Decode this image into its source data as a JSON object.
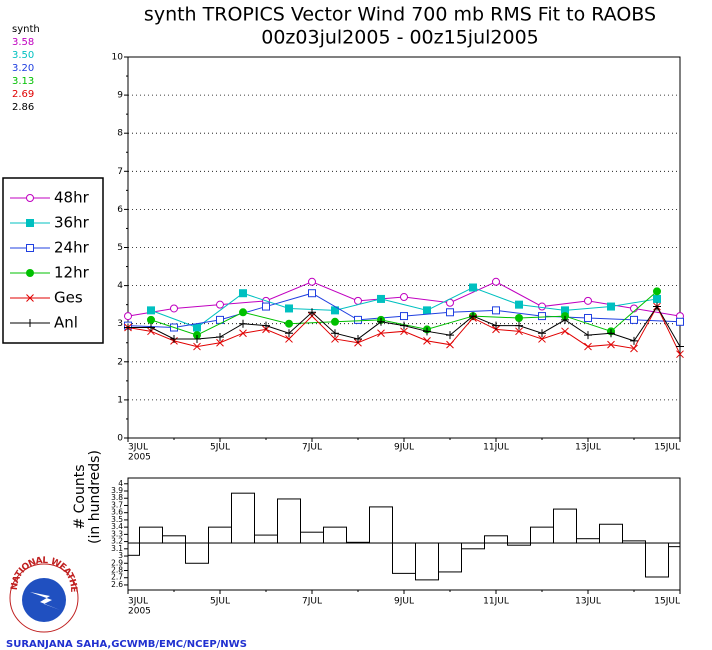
{
  "chart_data": [
    {
      "type": "line",
      "title": "synth TROPICS Vector Wind 700 mb RMS Fit to RAOBS",
      "subtitle": "00z03jul2005 - 00z15jul2005",
      "summary_title": "synth",
      "summary_labels": [
        "3.58",
        "3.50",
        "3.20",
        "3.13",
        "2.69",
        "2.86"
      ],
      "xlim": [
        0,
        12
      ],
      "xticks": [
        {
          "value": 0,
          "label": "3JUL"
        },
        {
          "value": 2,
          "label": "5JUL"
        },
        {
          "value": 4,
          "label": "7JUL"
        },
        {
          "value": 6,
          "label": "9JUL"
        },
        {
          "value": 8,
          "label": "11JUL"
        },
        {
          "value": 10,
          "label": "13JUL"
        },
        {
          "value": 12,
          "label": "15JUL"
        }
      ],
      "x_year_label": "2005",
      "ylim": [
        0,
        10
      ],
      "yticks": [
        0,
        1,
        2,
        3,
        4,
        5,
        6,
        7,
        8,
        9,
        10
      ],
      "grid": true,
      "series": [
        {
          "name": "48hr",
          "color": "#c000c0",
          "marker": "open-circle",
          "x": [
            0,
            1,
            2,
            3,
            4,
            5,
            6,
            7,
            8,
            9,
            10,
            11,
            12
          ],
          "values": [
            3.2,
            3.4,
            3.5,
            3.6,
            4.1,
            3.6,
            3.7,
            3.55,
            4.1,
            3.45,
            3.6,
            3.4,
            3.2
          ]
        },
        {
          "name": "36hr",
          "color": "#00c0c0",
          "marker": "filled-square",
          "x": [
            0.5,
            1.5,
            2.5,
            3.5,
            4.5,
            5.5,
            6.5,
            7.5,
            8.5,
            9.5,
            10.5,
            11.5
          ],
          "values": [
            3.35,
            2.9,
            3.8,
            3.4,
            3.35,
            3.65,
            3.35,
            3.95,
            3.5,
            3.35,
            3.45,
            3.65
          ]
        },
        {
          "name": "24hr",
          "color": "#2040e0",
          "marker": "open-square",
          "x": [
            0,
            1,
            2,
            3,
            4,
            5,
            6,
            7,
            8,
            9,
            10,
            11,
            12
          ],
          "values": [
            2.95,
            2.9,
            3.1,
            3.45,
            3.8,
            3.1,
            3.2,
            3.3,
            3.35,
            3.2,
            3.15,
            3.1,
            3.05
          ]
        },
        {
          "name": "12hr",
          "color": "#00c000",
          "marker": "filled-circle",
          "x": [
            0.5,
            1.5,
            2.5,
            3.5,
            4.5,
            5.5,
            6.5,
            7.5,
            8.5,
            9.5,
            10.5,
            11.5
          ],
          "values": [
            3.1,
            2.7,
            3.3,
            3.0,
            3.05,
            3.1,
            2.85,
            3.2,
            3.15,
            3.2,
            2.8,
            3.85
          ]
        },
        {
          "name": "Ges",
          "color": "#e00000",
          "marker": "cross",
          "x": [
            0,
            0.5,
            1,
            1.5,
            2,
            2.5,
            3,
            3.5,
            4,
            4.5,
            5,
            5.5,
            6,
            6.5,
            7,
            7.5,
            8,
            8.5,
            9,
            9.5,
            10,
            10.5,
            11,
            11.5,
            12
          ],
          "values": [
            2.9,
            2.8,
            2.55,
            2.4,
            2.5,
            2.75,
            2.85,
            2.6,
            3.2,
            2.6,
            2.5,
            2.75,
            2.8,
            2.55,
            2.45,
            3.15,
            2.85,
            2.8,
            2.6,
            2.8,
            2.4,
            2.45,
            2.35,
            3.45,
            2.2
          ]
        },
        {
          "name": "Anl",
          "color": "#000000",
          "marker": "plus",
          "x": [
            0,
            0.5,
            1,
            1.5,
            2,
            2.5,
            3,
            3.5,
            4,
            4.5,
            5,
            5.5,
            6,
            6.5,
            7,
            7.5,
            8,
            8.5,
            9,
            9.5,
            10,
            10.5,
            11,
            11.5,
            12
          ],
          "values": [
            2.9,
            2.9,
            2.6,
            2.6,
            2.65,
            3.0,
            2.95,
            2.75,
            3.3,
            2.75,
            2.6,
            3.05,
            2.95,
            2.8,
            2.7,
            3.2,
            2.95,
            2.95,
            2.75,
            3.1,
            2.7,
            2.75,
            2.55,
            3.45,
            2.4
          ]
        }
      ]
    },
    {
      "type": "bar",
      "ylabel": "# Counts",
      "ylabel2": "(in hundreds)",
      "xlim": [
        0,
        12
      ],
      "xticks": [
        {
          "value": 0,
          "label": "3JUL"
        },
        {
          "value": 2,
          "label": "5JUL"
        },
        {
          "value": 4,
          "label": "7JUL"
        },
        {
          "value": 6,
          "label": "9JUL"
        },
        {
          "value": 8,
          "label": "11JUL"
        },
        {
          "value": 10,
          "label": "13JUL"
        },
        {
          "value": 12,
          "label": "15JUL"
        }
      ],
      "x_year_label": "2005",
      "ylim": [
        2.53,
        4.08
      ],
      "yticks": [
        {
          "value": 4,
          "label": "4"
        },
        3.9,
        3.8,
        3.7,
        3.6,
        3.5,
        3.4,
        3.3,
        3.2,
        3.1,
        {
          "value": 3,
          "label": "3"
        },
        2.9,
        2.8,
        2.7,
        2.6
      ],
      "baseline": 3.18,
      "color": "#000000",
      "x": [
        0,
        0.5,
        1,
        1.5,
        2,
        2.5,
        3,
        3.5,
        4,
        4.5,
        5,
        5.5,
        6,
        6.5,
        7,
        7.5,
        8,
        8.5,
        9,
        9.5,
        10,
        10.5,
        11,
        11.5,
        12
      ],
      "values": [
        3.01,
        3.4,
        3.28,
        2.9,
        3.4,
        3.87,
        3.29,
        3.79,
        3.33,
        3.4,
        3.19,
        3.68,
        2.76,
        2.67,
        2.78,
        3.1,
        3.28,
        3.15,
        3.4,
        3.65,
        3.24,
        3.44,
        3.21,
        2.71,
        3.13
      ]
    }
  ],
  "footer": "SURANJANA SAHA,GCWMB/EMC/NCEP/NWS",
  "logo_text": "NATIONAL WEATHER SERVICE"
}
